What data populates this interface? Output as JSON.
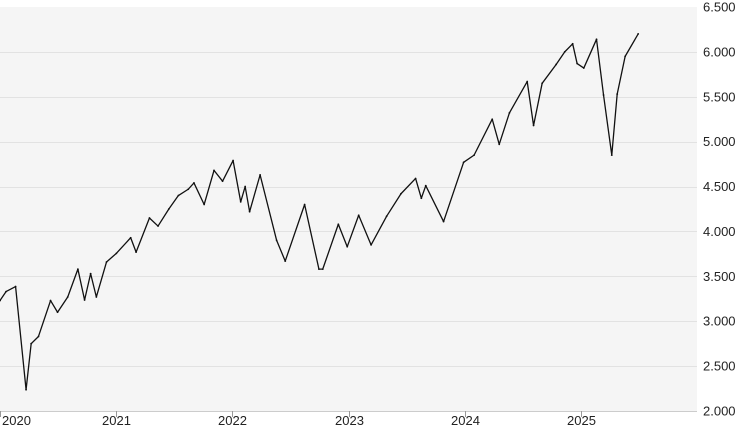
{
  "chart_data": {
    "type": "line",
    "title": "",
    "xlabel": "",
    "ylabel": "",
    "ylim": [
      2000,
      6500
    ],
    "xlim": [
      "2020-01-01",
      "2026-01-01"
    ],
    "grid": true,
    "legend": "none",
    "colors": {
      "line": "#111111",
      "plot_bg": "#f5f5f5",
      "grid": "#e2e2e2",
      "text": "#222222"
    },
    "y_ticks": [
      {
        "value": 2000,
        "label": "2.000"
      },
      {
        "value": 2500,
        "label": "2.500"
      },
      {
        "value": 3000,
        "label": "3.000"
      },
      {
        "value": 3500,
        "label": "3.500"
      },
      {
        "value": 4000,
        "label": "4.000"
      },
      {
        "value": 4500,
        "label": "4.500"
      },
      {
        "value": 5000,
        "label": "5.000"
      },
      {
        "value": 5500,
        "label": "5.500"
      },
      {
        "value": 6000,
        "label": "6.000"
      },
      {
        "value": 6500,
        "label": "6.500"
      }
    ],
    "x_ticks": [
      {
        "value": "2020-01-01",
        "label": "2020"
      },
      {
        "value": "2021-01-01",
        "label": "2021"
      },
      {
        "value": "2022-01-01",
        "label": "2022"
      },
      {
        "value": "2023-01-01",
        "label": "2023"
      },
      {
        "value": "2024-01-01",
        "label": "2024"
      },
      {
        "value": "2025-01-01",
        "label": "2025"
      }
    ],
    "series": [
      {
        "x": [
          "2020-01-01",
          "2020-01-20",
          "2020-02-19",
          "2020-03-23",
          "2020-04-08",
          "2020-05-01",
          "2020-06-08",
          "2020-06-30",
          "2020-08-01",
          "2020-09-02",
          "2020-09-23",
          "2020-10-12",
          "2020-10-30",
          "2020-12-01",
          "2021-01-01",
          "2021-02-15",
          "2021-03-04",
          "2021-04-15",
          "2021-05-12",
          "2021-06-15",
          "2021-07-15",
          "2021-08-15",
          "2021-09-02",
          "2021-10-04",
          "2021-11-04",
          "2021-12-01",
          "2022-01-03",
          "2022-01-27",
          "2022-02-10",
          "2022-02-24",
          "2022-03-29",
          "2022-05-20",
          "2022-06-16",
          "2022-08-16",
          "2022-09-30",
          "2022-10-12",
          "2022-11-30",
          "2022-12-28",
          "2023-02-02",
          "2023-03-13",
          "2023-05-01",
          "2023-06-15",
          "2023-07-31",
          "2023-08-18",
          "2023-09-01",
          "2023-10-27",
          "2023-12-29",
          "2024-01-31",
          "2024-03-28",
          "2024-04-19",
          "2024-05-21",
          "2024-07-16",
          "2024-08-05",
          "2024-09-01",
          "2024-10-15",
          "2024-11-11",
          "2024-12-06",
          "2024-12-20",
          "2025-01-10",
          "2025-02-19",
          "2025-03-13",
          "2025-04-08",
          "2025-04-25",
          "2025-05-20",
          "2025-06-30"
        ],
        "y": [
          3230,
          3330,
          3386,
          2237,
          2750,
          2830,
          3230,
          3100,
          3270,
          3580,
          3236,
          3530,
          3270,
          3660,
          3756,
          3930,
          3770,
          4150,
          4060,
          4250,
          4400,
          4470,
          4540,
          4300,
          4680,
          4560,
          4790,
          4330,
          4500,
          4220,
          4630,
          3900,
          3670,
          4300,
          3580,
          3580,
          4080,
          3830,
          4180,
          3850,
          4170,
          4420,
          4590,
          4370,
          4510,
          4110,
          4770,
          4850,
          5250,
          4970,
          5320,
          5670,
          5180,
          5650,
          5860,
          6000,
          6090,
          5870,
          5820,
          6140,
          5520,
          4850,
          5530,
          5950,
          6200
        ]
      }
    ]
  }
}
